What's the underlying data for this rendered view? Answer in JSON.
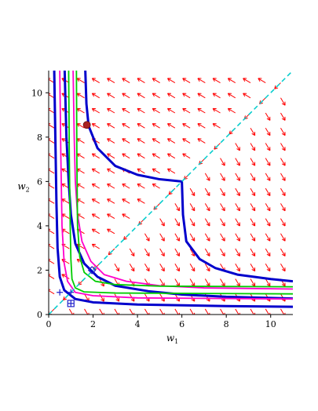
{
  "chart_data": {
    "type": "line",
    "subtype": "phase-portrait",
    "title": "",
    "xlabel": "w",
    "xlabel_subscript": "1",
    "ylabel": "w",
    "ylabel_subscript": "2",
    "xlim": [
      0,
      11
    ],
    "ylim": [
      0,
      11
    ],
    "xticks": [
      0,
      2,
      4,
      6,
      8,
      10
    ],
    "yticks": [
      0,
      2,
      4,
      6,
      8,
      10
    ],
    "grid": false,
    "legend": "none",
    "direction_field": {
      "color": "#ff0000",
      "spacing": 0.68,
      "description": "arrows pointing toward the w1 and w2 axes, away from the diagonal"
    },
    "series": [
      {
        "color": "#0000cc",
        "style": "solid-thick",
        "branch": "upper-left",
        "points": [
          [
            0.72,
            11
          ],
          [
            0.8,
            8
          ],
          [
            0.9,
            6
          ],
          [
            1.0,
            4.5
          ],
          [
            1.2,
            3.2
          ],
          [
            1.6,
            2.3
          ],
          [
            2.2,
            1.7
          ],
          [
            3,
            1.3
          ],
          [
            4.5,
            1.05
          ],
          [
            6,
            0.9
          ],
          [
            8,
            0.8
          ],
          [
            11,
            0.72
          ]
        ],
        "note": "lower-left blue curve (w1 ~ w2 hyperbola closest to origin)"
      },
      {
        "color": "#0000cc",
        "style": "solid-thick",
        "points": [
          [
            0.25,
            11
          ],
          [
            0.3,
            8
          ],
          [
            0.35,
            5
          ],
          [
            0.4,
            3
          ],
          [
            0.5,
            1.7
          ],
          [
            0.7,
            1.1
          ],
          [
            1.2,
            0.7
          ],
          [
            2,
            0.55
          ],
          [
            4,
            0.45
          ],
          [
            8,
            0.38
          ],
          [
            11,
            0.35
          ]
        ],
        "note": "inner blue curve near axes"
      },
      {
        "color": "#0000cc",
        "style": "solid-thick",
        "points": [
          [
            1.65,
            11
          ],
          [
            1.7,
            9.5
          ],
          [
            1.8,
            8.5
          ],
          [
            2.2,
            7.5
          ],
          [
            3,
            6.7
          ],
          [
            4,
            6.3
          ],
          [
            5,
            6.1
          ],
          [
            6,
            6.0
          ],
          [
            6.05,
            4.5
          ],
          [
            6.2,
            3.3
          ],
          [
            6.8,
            2.5
          ],
          [
            7.5,
            2.1
          ],
          [
            8.5,
            1.8
          ],
          [
            10,
            1.6
          ],
          [
            11,
            1.5
          ]
        ],
        "note": "outer blue trajectory with corner at (6, 6)"
      },
      {
        "color": "#ff00cc",
        "style": "solid",
        "points": [
          [
            1.1,
            11
          ],
          [
            1.15,
            8
          ],
          [
            1.2,
            6
          ],
          [
            1.3,
            4.5
          ],
          [
            1.5,
            3.3
          ],
          [
            1.9,
            2.4
          ],
          [
            2.5,
            1.8
          ],
          [
            3.5,
            1.5
          ],
          [
            5,
            1.3
          ],
          [
            7,
            1.2
          ],
          [
            11,
            1.15
          ]
        ],
        "note": "magenta trajectory 1"
      },
      {
        "color": "#ff00cc",
        "style": "solid",
        "points": [
          [
            0.5,
            11
          ],
          [
            0.55,
            7
          ],
          [
            0.6,
            4
          ],
          [
            0.7,
            2.3
          ],
          [
            0.85,
            1.5
          ],
          [
            1.2,
            1.0
          ],
          [
            2,
            0.85
          ],
          [
            4,
            0.75
          ],
          [
            11,
            0.7
          ]
        ],
        "note": "magenta trajectory 2"
      },
      {
        "color": "#00cc00",
        "style": "solid",
        "points": [
          [
            0.9,
            11
          ],
          [
            0.93,
            7
          ],
          [
            0.97,
            4
          ],
          [
            1.0,
            2.5
          ],
          [
            1.05,
            1.6
          ],
          [
            1.2,
            1.2
          ],
          [
            1.6,
            1.02
          ],
          [
            3,
            0.97
          ],
          [
            11,
            0.93
          ]
        ],
        "note": "green trajectory 1"
      },
      {
        "color": "#00cc00",
        "style": "solid",
        "points": [
          [
            1.25,
            11
          ],
          [
            1.27,
            7
          ],
          [
            1.3,
            4
          ],
          [
            1.4,
            2.6
          ],
          [
            1.6,
            1.9
          ],
          [
            2.1,
            1.5
          ],
          [
            3,
            1.35
          ],
          [
            5,
            1.28
          ],
          [
            11,
            1.25
          ]
        ],
        "note": "green trajectory 2"
      },
      {
        "color": "#00cccc",
        "style": "dashed",
        "points": [
          [
            0,
            0
          ],
          [
            11,
            11
          ]
        ],
        "note": "diagonal separatrix w1 = w2"
      }
    ],
    "markers": [
      {
        "shape": "circle-filled",
        "color": "#aa2222",
        "x": 1.72,
        "y": 8.55
      },
      {
        "shape": "diamond",
        "color": "#2222cc",
        "x": 1.95,
        "y": 2.0
      },
      {
        "shape": "cross",
        "color": "#2222cc",
        "x": 0.5,
        "y": 1.0
      },
      {
        "shape": "cross",
        "color": "#2222cc",
        "x": 1.0,
        "y": 0.5
      },
      {
        "shape": "square",
        "color": "#2222cc",
        "x": 1.0,
        "y": 0.5
      },
      {
        "shape": "cross",
        "color": "#2222cc",
        "x": 1.0,
        "y": 1.0
      }
    ]
  }
}
